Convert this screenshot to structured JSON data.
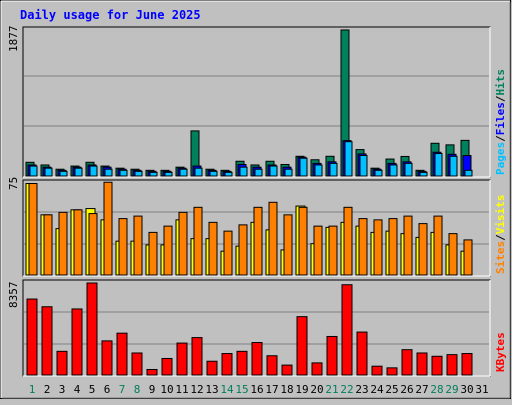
{
  "title": "Daily usage for June 2025",
  "colors": {
    "background": "#c0c0c0",
    "title": "#0000ff",
    "hits": "#00805c",
    "files": "#0000ff",
    "pages": "#00c0ff",
    "visits": "#ffff00",
    "sites": "#ff8000",
    "kbytes": "#ff0000",
    "weekday_label": "#000000",
    "weekend_label": "#00805c"
  },
  "chart_data": [
    {
      "type": "bar",
      "panel": "hits-files-pages",
      "ymax_label": "1877",
      "ylim": [
        0,
        1877
      ],
      "legend": [
        "Pages",
        "Files",
        "Hits"
      ],
      "categories": [
        "1",
        "2",
        "3",
        "4",
        "5",
        "6",
        "7",
        "8",
        "9",
        "10",
        "11",
        "12",
        "13",
        "14",
        "15",
        "16",
        "17",
        "18",
        "19",
        "20",
        "21",
        "22",
        "23",
        "24",
        "25",
        "26",
        "27",
        "28",
        "29",
        "30",
        "31"
      ],
      "series": [
        {
          "name": "Hits",
          "values": [
            174,
            140,
            86,
            126,
            174,
            126,
            99,
            86,
            72,
            72,
            112,
            572,
            86,
            72,
            187,
            140,
            187,
            146,
            250,
            206,
            250,
            1852,
            335,
            99,
            215,
            248,
            72,
            415,
            395,
            452,
            0
          ]
        },
        {
          "name": "Files",
          "values": [
            140,
            112,
            72,
            112,
            140,
            112,
            86,
            72,
            59,
            59,
            99,
            126,
            72,
            59,
            146,
            112,
            140,
            112,
            238,
            160,
            180,
            449,
            280,
            86,
            160,
            180,
            59,
            301,
            275,
            259,
            0
          ]
        },
        {
          "name": "Pages",
          "values": [
            126,
            99,
            59,
            99,
            126,
            86,
            72,
            59,
            46,
            46,
            86,
            99,
            59,
            46,
            112,
            86,
            126,
            86,
            225,
            140,
            160,
            435,
            260,
            72,
            140,
            160,
            46,
            285,
            250,
            72,
            0
          ]
        }
      ]
    },
    {
      "type": "bar",
      "panel": "visits-sites",
      "ymax_label": "75",
      "ylim": [
        0,
        75
      ],
      "legend": [
        "Sites",
        "Visits"
      ],
      "categories": [
        "1",
        "2",
        "3",
        "4",
        "5",
        "6",
        "7",
        "8",
        "9",
        "10",
        "11",
        "12",
        "13",
        "14",
        "15",
        "16",
        "17",
        "18",
        "19",
        "20",
        "21",
        "22",
        "23",
        "24",
        "25",
        "26",
        "27",
        "28",
        "29",
        "30",
        "31"
      ],
      "series": [
        {
          "name": "Visits",
          "values": [
            73,
            48,
            37,
            52,
            53,
            44,
            27,
            27,
            24,
            24,
            44,
            29,
            29,
            19,
            23,
            42,
            36,
            20,
            55,
            25,
            38,
            42,
            39,
            34,
            35,
            33,
            30,
            34,
            24,
            19,
            0
          ]
        },
        {
          "name": "Sites",
          "values": [
            73,
            48,
            50,
            52,
            49,
            74,
            45,
            47,
            34,
            39,
            50,
            54,
            42,
            35,
            40,
            54,
            58,
            48,
            54,
            39,
            39,
            54,
            45,
            44,
            45,
            47,
            41,
            47,
            33,
            28,
            0
          ]
        }
      ]
    },
    {
      "type": "bar",
      "panel": "kbytes",
      "ymax_label": "8357",
      "ylim": [
        0,
        8357
      ],
      "legend": [
        "KBytes"
      ],
      "categories": [
        "1",
        "2",
        "3",
        "4",
        "5",
        "6",
        "7",
        "8",
        "9",
        "10",
        "11",
        "12",
        "13",
        "14",
        "15",
        "16",
        "17",
        "18",
        "19",
        "20",
        "21",
        "22",
        "23",
        "24",
        "25",
        "26",
        "27",
        "28",
        "29",
        "30",
        "31"
      ],
      "series": [
        {
          "name": "KBytes",
          "values": [
            6900,
            6200,
            2150,
            6000,
            8357,
            3100,
            3800,
            2000,
            500,
            1500,
            2900,
            3400,
            1250,
            1950,
            2150,
            2950,
            1750,
            900,
            5300,
            1100,
            3500,
            8200,
            3900,
            800,
            650,
            2300,
            2000,
            1700,
            1850,
            1950,
            0
          ]
        }
      ]
    }
  ],
  "days": {
    "labels": [
      "1",
      "2",
      "3",
      "4",
      "5",
      "6",
      "7",
      "8",
      "9",
      "10",
      "11",
      "12",
      "13",
      "14",
      "15",
      "16",
      "17",
      "18",
      "19",
      "20",
      "21",
      "22",
      "23",
      "24",
      "25",
      "26",
      "27",
      "28",
      "29",
      "30",
      "31"
    ],
    "weekend": [
      "1",
      "7",
      "8",
      "14",
      "15",
      "21",
      "22",
      "28",
      "29"
    ]
  }
}
